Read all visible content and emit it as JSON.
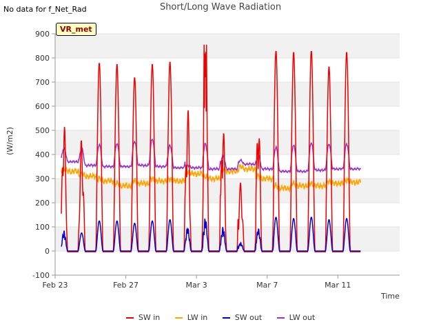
{
  "header": {
    "no_data_note": "No data for f_Net_Rad"
  },
  "badge": {
    "label": "VR_met"
  },
  "chart_data": {
    "type": "line",
    "title": "Short/Long Wave Radiation",
    "xlabel": "Time",
    "ylabel": "(W/m2)",
    "ylim": [
      -100,
      900
    ],
    "yticks": [
      -100,
      0,
      100,
      200,
      300,
      400,
      500,
      600,
      700,
      800,
      900
    ],
    "xlim_days": [
      0,
      19.5
    ],
    "x_axis_start": "Feb 23",
    "xticks": [
      {
        "day": 0,
        "label": "Feb 23"
      },
      {
        "day": 4,
        "label": "Feb 27"
      },
      {
        "day": 8,
        "label": "Mar 3"
      },
      {
        "day": 12,
        "label": "Mar 7"
      },
      {
        "day": 16,
        "label": "Mar 11"
      }
    ],
    "data_range_days": [
      0.35,
      17.3
    ],
    "legend_position": "bottom",
    "band_shading": true,
    "series": [
      {
        "name": "SW in",
        "color": "#ee0000",
        "daily_peaks": [
          550,
          470,
          780,
          775,
          720,
          775,
          785,
          610,
          855,
          545,
          285,
          570,
          830,
          825,
          830,
          765,
          825
        ]
      },
      {
        "name": "LW in",
        "color": "#ffa500",
        "daily_levels": [
          330,
          310,
          290,
          270,
          280,
          290,
          290,
          320,
          300,
          330,
          340,
          300,
          260,
          270,
          270,
          280,
          285
        ]
      },
      {
        "name": "SW out",
        "color": "#0000cc",
        "daily_peaks": [
          85,
          75,
          125,
          125,
          115,
          125,
          130,
          100,
          140,
          100,
          35,
          95,
          140,
          135,
          140,
          130,
          135
        ]
      },
      {
        "name": "LW out",
        "color": "#9a32cd",
        "daily_levels": [
          370,
          355,
          350,
          350,
          355,
          350,
          345,
          345,
          340,
          340,
          360,
          340,
          330,
          330,
          335,
          340,
          340
        ],
        "daily_peaks": [
          425,
          425,
          440,
          445,
          455,
          465,
          440,
          355,
          445,
          395,
          375,
          395,
          430,
          440,
          450,
          445,
          445
        ]
      }
    ]
  }
}
